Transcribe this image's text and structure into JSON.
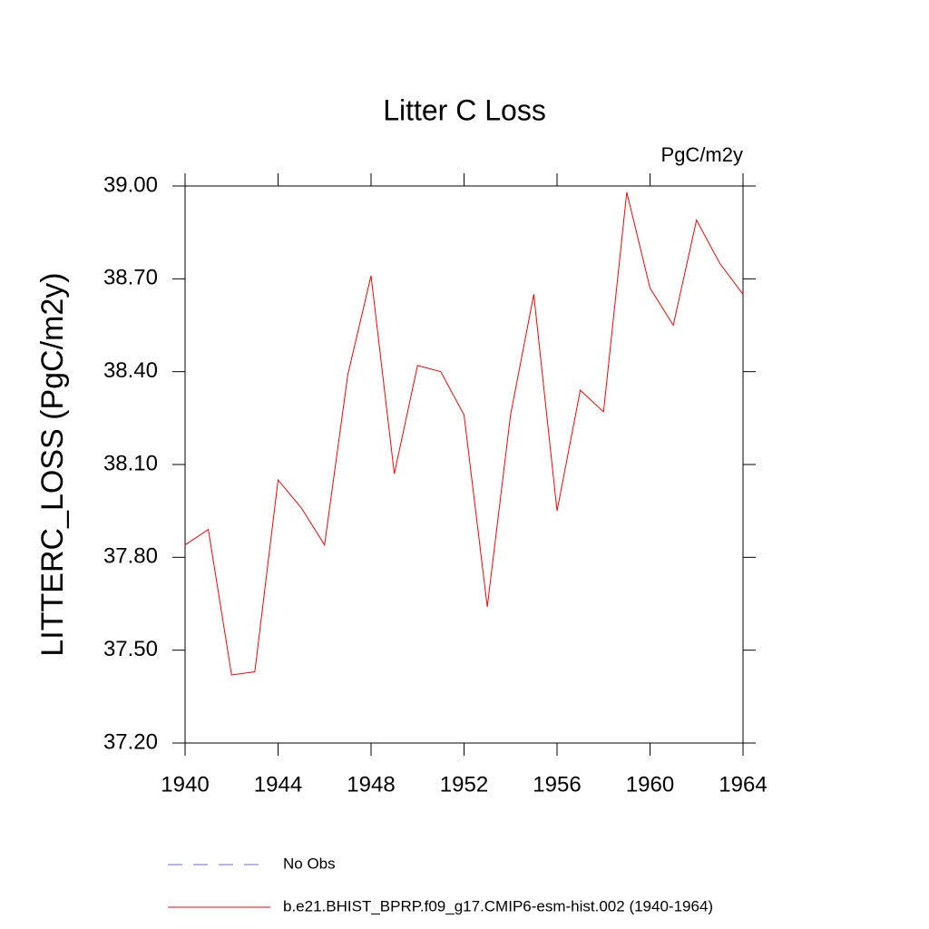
{
  "chart_data": {
    "type": "line",
    "title": "Litter C Loss",
    "units": "PgC/m2y",
    "y_label": "LITTERC_LOSS  (PgC/m2y)",
    "x": [
      1940,
      1941,
      1942,
      1943,
      1944,
      1945,
      1946,
      1947,
      1948,
      1949,
      1950,
      1951,
      1952,
      1953,
      1954,
      1955,
      1956,
      1957,
      1958,
      1959,
      1960,
      1961,
      1962,
      1963,
      1964
    ],
    "series": [
      {
        "name": "b.e21.BHIST_BPRP.f09_g17.CMIP6-esm-hist.002 (1940-1964)",
        "color": "#ff0000",
        "values": [
          37.84,
          37.89,
          37.42,
          37.43,
          38.05,
          37.96,
          37.84,
          38.39,
          38.71,
          38.07,
          38.42,
          38.4,
          38.26,
          37.64,
          38.26,
          38.65,
          37.95,
          38.34,
          38.27,
          38.98,
          38.67,
          38.55,
          38.89,
          38.75,
          38.65
        ]
      }
    ],
    "legend_extra": {
      "name": "No Obs",
      "color": "#6a6acd",
      "dashed": true
    },
    "xlim": [
      1940,
      1964
    ],
    "xticks": [
      1940,
      1944,
      1948,
      1952,
      1956,
      1960,
      1964
    ],
    "ylim": [
      37.2,
      39.0
    ],
    "yticks": [
      {
        "value": 37.2,
        "label": "37.20"
      },
      {
        "value": 37.5,
        "label": "37.50"
      },
      {
        "value": 37.8,
        "label": "37.80"
      },
      {
        "value": 38.1,
        "label": "38.10"
      },
      {
        "value": 38.4,
        "label": "38.40"
      },
      {
        "value": 38.7,
        "label": "38.70"
      },
      {
        "value": 39.0,
        "label": "39.00"
      }
    ],
    "grid": false
  }
}
